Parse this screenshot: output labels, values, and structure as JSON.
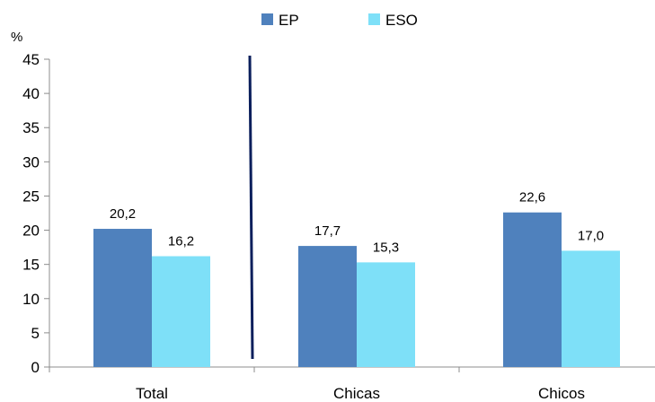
{
  "chart_data": {
    "type": "bar",
    "title": "",
    "xlabel": "",
    "ylabel": "%",
    "ylim": [
      0,
      45
    ],
    "yticks": [
      0,
      5,
      10,
      15,
      20,
      25,
      30,
      35,
      40,
      45
    ],
    "grid": false,
    "legend_position": "top-center",
    "categories": [
      "Total",
      "Chicas",
      "Chicos"
    ],
    "series": [
      {
        "name": "EP",
        "color": "#4f81bd",
        "values": [
          20.2,
          17.7,
          22.6
        ],
        "labels": [
          "20,2",
          "17,7",
          "22,6"
        ]
      },
      {
        "name": "ESO",
        "color": "#7ee0f8",
        "values": [
          16.2,
          15.3,
          17.0
        ],
        "labels": [
          "16,2",
          "15,3",
          "17,0"
        ]
      }
    ],
    "separator_color": "#0b1f5c"
  }
}
